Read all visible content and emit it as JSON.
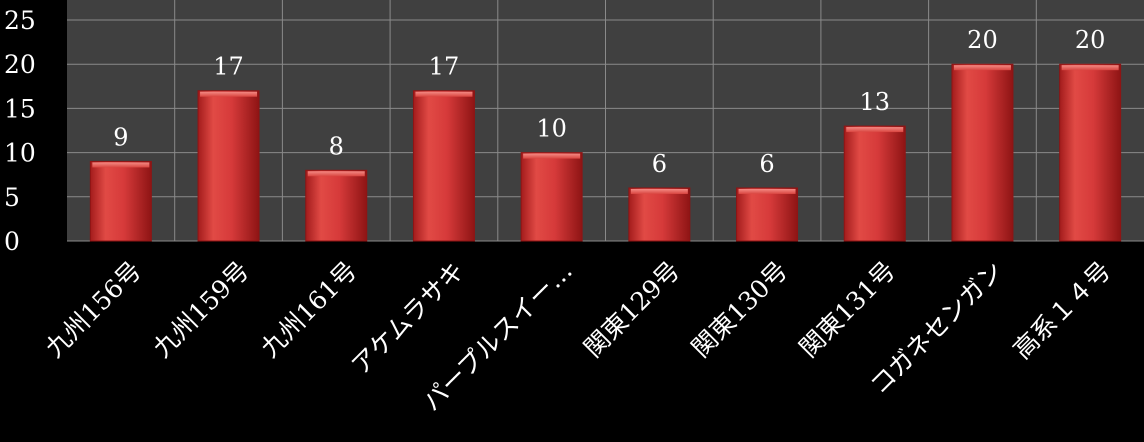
{
  "chart_data": {
    "type": "bar",
    "categories": [
      "九州156号",
      "九州159号",
      "九州161号",
      "アケムラサキ",
      "パープルスイー…",
      "関東129号",
      "関東130号",
      "関東131号",
      "コガネセンガン",
      "高系１４号"
    ],
    "values": [
      9,
      17,
      8,
      17,
      10,
      6,
      6,
      13,
      20,
      20
    ],
    "data_labels": [
      "9",
      "17",
      "8",
      "17",
      "10",
      "6",
      "6",
      "13",
      "20",
      "20"
    ],
    "y_ticks": [
      "0",
      "5",
      "10",
      "15",
      "20",
      "25"
    ],
    "ylim": [
      0,
      25
    ],
    "grid": true,
    "legend": "none",
    "colors": {
      "background": "#000000",
      "plot_area": "#404040",
      "grid": "#8a8a8a",
      "bar": "#d83a3a",
      "bar_light": "#ef6a64",
      "bar_dark": "#8e1414",
      "text": "#ffffff"
    }
  }
}
